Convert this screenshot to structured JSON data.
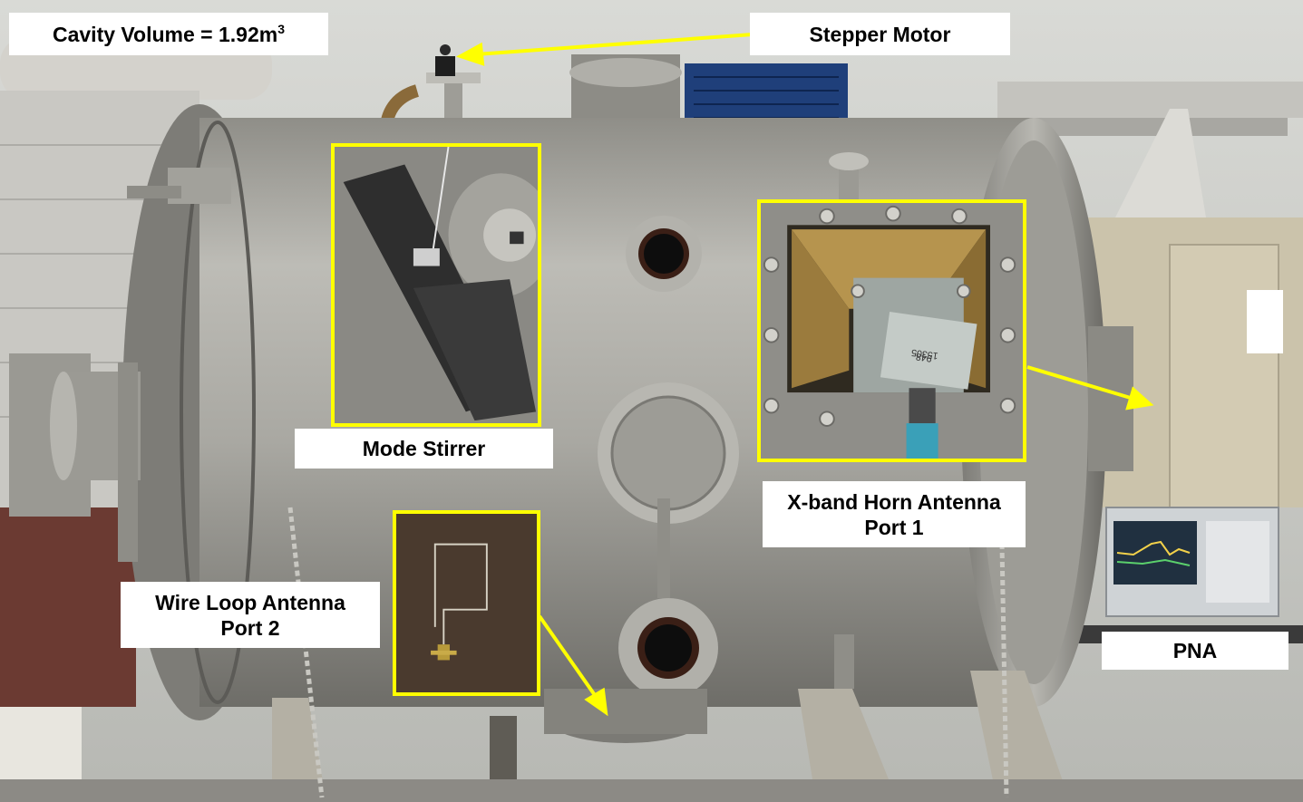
{
  "labels": {
    "cavity_volume": "Cavity Volume = 1.92m",
    "cavity_volume_sup": "3",
    "stepper_motor": "Stepper Motor",
    "mode_stirrer": "Mode Stirrer",
    "horn_antenna_line1": "X-band Horn Antenna",
    "horn_antenna_line2": "Port 1",
    "wire_loop_line1": "Wire Loop Antenna",
    "wire_loop_line2": "Port 2",
    "pna": "PNA"
  },
  "device_markings": {
    "adapter_line1": "15305",
    "adapter_line2": "948"
  },
  "colors": {
    "highlight": "#ffff00",
    "label_bg": "#ffffff",
    "chamber_steel": "#a9a8a2",
    "background_wall": "#cfd0cc"
  }
}
